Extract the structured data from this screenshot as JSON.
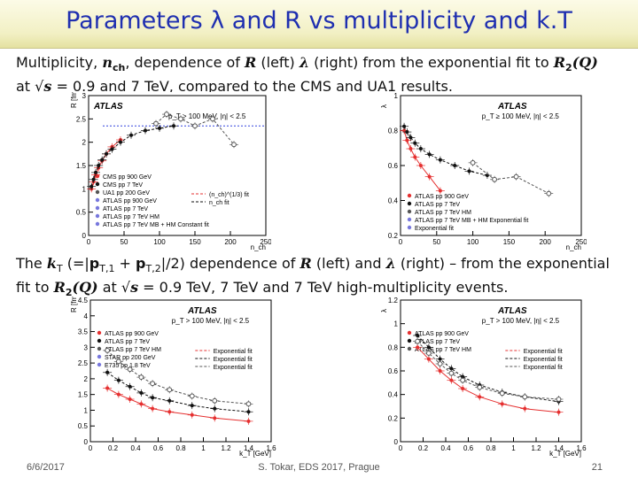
{
  "slide": {
    "title": "Parameters λ and R vs multiplicity and k.T",
    "para1": {
      "t1": "Multiplicity, ",
      "n": "n",
      "nsub": "ch",
      "t2": ", dependence of ",
      "R": "R",
      "t3": " (left) ",
      "lam": "λ",
      "t4": " (right) from the exponential fit to ",
      "R2": "R",
      "R2sub": "2",
      "Q": "(Q)",
      "t5": "at √",
      "s": "s",
      "t6": " = 0.9 and 7 TeV, compared to the CMS and UA1 results."
    },
    "para2": {
      "t1": "The ",
      "k": "k",
      "ksub": "T",
      "t2": " (=|",
      "p1": "p",
      "p1sub": "T,1",
      "t3": " + ",
      "p2": "p",
      "p2sub": "T,2",
      "t4": "|/2) dependence of ",
      "R": "R",
      "t5": " (left) and ",
      "lam": "λ",
      "t6": " (right) – from the exponential",
      "t7": "fit to ",
      "R2": "R",
      "R2sub": "2",
      "Q": "(Q)",
      "t8": "  at √",
      "s": "s",
      "t9": " = 0.9 TeV, 7 TeV and 7 TeV high-multiplicity events."
    },
    "footer": {
      "date": "6/6/2017",
      "center": "S. Tokar, EDS 2017, Prague",
      "page": "21"
    }
  },
  "chart_data": [
    {
      "type": "scatter",
      "ylabel": "R [fm]",
      "xlabel": "n_ch",
      "xlim": [
        0,
        250
      ],
      "ylim": [
        0,
        3
      ],
      "xticks": [
        "0",
        "50",
        "100",
        "150",
        "200",
        "250"
      ],
      "yticks": [
        "0",
        "0.5",
        "1",
        "1.5",
        "2",
        "2.5",
        "3"
      ],
      "atlas": "ATLAS",
      "cut": "p_T > 100 MeV, |η| < 2.5",
      "legend": [
        "CMS pp 900 GeV",
        "CMS pp 7 TeV",
        "UA1 pp 200 GeV",
        "ATLAS pp 900 GeV",
        "ATLAS pp 7 TeV",
        "ATLAS pp 7 TeV HM",
        "ATLAS pp 7 TeV MB + HM Constant fit"
      ],
      "fitlabels": [
        "(n_ch)^(1/3) fit",
        "n_ch fit"
      ],
      "series": [
        {
          "name": "ATLAS pp 900 GeV",
          "color": "#e53030",
          "points": [
            [
              4,
              1.0
            ],
            [
              7,
              1.15
            ],
            [
              10,
              1.3
            ],
            [
              14,
              1.45
            ],
            [
              19,
              1.6
            ],
            [
              25,
              1.75
            ],
            [
              33,
              1.9
            ],
            [
              45,
              2.05
            ]
          ]
        },
        {
          "name": "ATLAS pp 7 TeV",
          "color": "#111111",
          "points": [
            [
              4,
              1.05
            ],
            [
              7,
              1.2
            ],
            [
              10,
              1.35
            ],
            [
              14,
              1.5
            ],
            [
              19,
              1.62
            ],
            [
              25,
              1.75
            ],
            [
              33,
              1.85
            ],
            [
              45,
              2.0
            ],
            [
              60,
              2.15
            ],
            [
              80,
              2.25
            ],
            [
              100,
              2.3
            ],
            [
              120,
              2.35
            ]
          ]
        },
        {
          "name": "ATLAS pp 7 TeV HM",
          "color": "#555555",
          "points": [
            [
              95,
              2.4
            ],
            [
              110,
              2.6
            ],
            [
              130,
              2.5
            ],
            [
              150,
              2.35
            ],
            [
              175,
              2.5
            ],
            [
              205,
              1.95
            ]
          ]
        }
      ],
      "const_fit": 2.35
    },
    {
      "type": "scatter",
      "ylabel": "λ",
      "xlabel": "n_ch",
      "xlim": [
        0,
        250
      ],
      "ylim": [
        0.2,
        1.2
      ],
      "xticks": [
        "0",
        "50",
        "100",
        "150",
        "200",
        "250"
      ],
      "yticks": [
        "0.2",
        "0.4",
        "0.6",
        "0.8",
        "1"
      ],
      "atlas": "ATLAS",
      "cut": "p_T ≥ 100 MeV, |η| < 2.5",
      "legend": [
        "ATLAS pp 900 GeV",
        "ATLAS pp 7 TeV",
        "ATLAS pp 7 TeV HM",
        "ATLAS pp 7 TeV MB + HM Exponential fit",
        "Exponential fit"
      ],
      "series": [
        {
          "name": "ATLAS pp 900 GeV",
          "color": "#e53030",
          "points": [
            [
              5,
              0.95
            ],
            [
              9,
              0.88
            ],
            [
              14,
              0.82
            ],
            [
              20,
              0.76
            ],
            [
              28,
              0.7
            ],
            [
              40,
              0.62
            ],
            [
              55,
              0.52
            ]
          ]
        },
        {
          "name": "ATLAS pp 7 TeV",
          "color": "#111111",
          "points": [
            [
              5,
              0.98
            ],
            [
              9,
              0.94
            ],
            [
              14,
              0.9
            ],
            [
              20,
              0.86
            ],
            [
              28,
              0.82
            ],
            [
              40,
              0.78
            ],
            [
              55,
              0.74
            ],
            [
              75,
              0.7
            ],
            [
              95,
              0.66
            ],
            [
              120,
              0.63
            ]
          ]
        },
        {
          "name": "ATLAS pp 7 TeV HM",
          "color": "#555555",
          "points": [
            [
              100,
              0.72
            ],
            [
              130,
              0.6
            ],
            [
              160,
              0.62
            ],
            [
              205,
              0.5
            ]
          ]
        }
      ]
    },
    {
      "type": "scatter",
      "ylabel": "R [fm]",
      "xlabel": "k_T [GeV]",
      "xlim": [
        0,
        1.6
      ],
      "ylim": [
        0,
        4.5
      ],
      "xticks": [
        "0",
        "0.2",
        "0.4",
        "0.6",
        "0.8",
        "1",
        "1.2",
        "1.4",
        "1.6"
      ],
      "yticks": [
        "0",
        "0.5",
        "1",
        "1.5",
        "2",
        "2.5",
        "3",
        "3.5",
        "4",
        "4.5"
      ],
      "atlas": "ATLAS",
      "cut": "p_T > 100 MeV, |η| < 2.5",
      "legend": [
        "ATLAS pp 900 GeV",
        "ATLAS pp 7 TeV",
        "ATLAS pp 7 TeV HM",
        "STAR pp 200 GeV",
        "E735 pp 1.8 TeV"
      ],
      "fitlabels": [
        "Exponential fit",
        "Exponential fit",
        "Exponential fit"
      ],
      "series": [
        {
          "name": "ATLAS pp 900 GeV",
          "color": "#e53030",
          "points": [
            [
              0.15,
              1.7
            ],
            [
              0.25,
              1.5
            ],
            [
              0.35,
              1.35
            ],
            [
              0.45,
              1.2
            ],
            [
              0.55,
              1.05
            ],
            [
              0.7,
              0.95
            ],
            [
              0.9,
              0.85
            ],
            [
              1.1,
              0.75
            ],
            [
              1.4,
              0.65
            ]
          ]
        },
        {
          "name": "ATLAS pp 7 TeV",
          "color": "#111111",
          "points": [
            [
              0.15,
              2.2
            ],
            [
              0.25,
              1.95
            ],
            [
              0.35,
              1.75
            ],
            [
              0.45,
              1.55
            ],
            [
              0.55,
              1.4
            ],
            [
              0.7,
              1.3
            ],
            [
              0.9,
              1.15
            ],
            [
              1.1,
              1.05
            ],
            [
              1.4,
              0.95
            ]
          ]
        },
        {
          "name": "ATLAS pp 7 TeV HM",
          "color": "#555555",
          "points": [
            [
              0.15,
              2.9
            ],
            [
              0.25,
              2.55
            ],
            [
              0.35,
              2.3
            ],
            [
              0.45,
              2.05
            ],
            [
              0.55,
              1.85
            ],
            [
              0.7,
              1.65
            ],
            [
              0.9,
              1.45
            ],
            [
              1.1,
              1.3
            ],
            [
              1.4,
              1.2
            ]
          ]
        }
      ]
    },
    {
      "type": "scatter",
      "ylabel": "λ",
      "xlabel": "k_T [GeV]",
      "xlim": [
        0,
        1.6
      ],
      "ylim": [
        0,
        1.2
      ],
      "xticks": [
        "0",
        "0.2",
        "0.4",
        "0.6",
        "0.8",
        "1",
        "1.2",
        "1.4",
        "1.6"
      ],
      "yticks": [
        "0",
        "0.2",
        "0.4",
        "0.6",
        "0.8",
        "1",
        "1.2"
      ],
      "atlas": "ATLAS",
      "cut": "p_T > 100 MeV, |η| < 2.5",
      "legend": [
        "ATLAS pp 900 GeV",
        "ATLAS pp 7 TeV",
        "ATLAS pp 7 TeV HM"
      ],
      "fitlabels": [
        "Exponential fit",
        "Exponential fit",
        "Exponential fit"
      ],
      "series": [
        {
          "name": "ATLAS pp 900 GeV",
          "color": "#e53030",
          "points": [
            [
              0.15,
              0.8
            ],
            [
              0.25,
              0.7
            ],
            [
              0.35,
              0.6
            ],
            [
              0.45,
              0.52
            ],
            [
              0.55,
              0.45
            ],
            [
              0.7,
              0.38
            ],
            [
              0.9,
              0.32
            ],
            [
              1.1,
              0.28
            ],
            [
              1.4,
              0.25
            ]
          ]
        },
        {
          "name": "ATLAS pp 7 TeV",
          "color": "#111111",
          "points": [
            [
              0.15,
              0.9
            ],
            [
              0.25,
              0.8
            ],
            [
              0.35,
              0.7
            ],
            [
              0.45,
              0.62
            ],
            [
              0.55,
              0.55
            ],
            [
              0.7,
              0.48
            ],
            [
              0.9,
              0.42
            ],
            [
              1.1,
              0.38
            ],
            [
              1.4,
              0.34
            ]
          ]
        },
        {
          "name": "ATLAS pp 7 TeV HM",
          "color": "#555555",
          "points": [
            [
              0.15,
              0.85
            ],
            [
              0.25,
              0.75
            ],
            [
              0.35,
              0.66
            ],
            [
              0.45,
              0.58
            ],
            [
              0.55,
              0.52
            ],
            [
              0.7,
              0.46
            ],
            [
              0.9,
              0.41
            ],
            [
              1.1,
              0.38
            ],
            [
              1.4,
              0.36
            ]
          ]
        }
      ]
    }
  ]
}
